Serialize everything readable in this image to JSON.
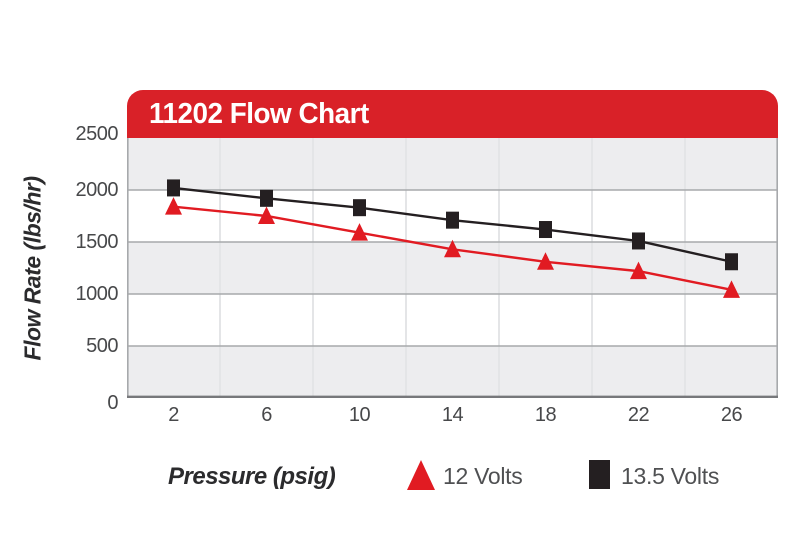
{
  "title": "11202 Flow Chart",
  "colors": {
    "banner_red": "#d92128",
    "series_12v_red": "#e11b22",
    "series_13_5v_black": "#241f21",
    "band_gray": "#ededef",
    "gridline_gray": "#a7a9ac",
    "bottom_axis_gray": "#77787b",
    "vertical_separator": "#e4e5e7",
    "tick_text": "#47484a",
    "legend_text": "#4f5052"
  },
  "axes": {
    "y_title": "Flow Rate (lbs/hr)",
    "x_title": "Pressure (psig)"
  },
  "legend": {
    "items": [
      {
        "label": "12 Volts",
        "marker": "triangle-up",
        "color": "#e11b22"
      },
      {
        "label": "13.5 Volts",
        "marker": "square",
        "color": "#241f21"
      }
    ]
  },
  "chart_data": {
    "type": "line",
    "title": "11202 Flow Chart",
    "xlabel": "Pressure (psig)",
    "ylabel": "Flow Rate (lbs/hr)",
    "categories": [
      2,
      6,
      10,
      14,
      18,
      22,
      26
    ],
    "x_tick_labels": [
      "2",
      "6",
      "10",
      "14",
      "18",
      "22",
      "26"
    ],
    "y_tick_labels": [
      "2500",
      "2000",
      "1500",
      "1000",
      "500",
      "0"
    ],
    "ylim": [
      0,
      2500
    ],
    "y_step": 500,
    "grid": "horizontal gridlines every 500 with alternating gray/white bands; faint vertical separators between categories",
    "legend_position": "below chart, right of x-axis label",
    "series": [
      {
        "name": "12 Volts",
        "marker": "triangle-up",
        "color": "#e11b22",
        "values": [
          1840,
          1750,
          1590,
          1430,
          1310,
          1220,
          1040
        ]
      },
      {
        "name": "13.5 Volts",
        "marker": "square",
        "color": "#241f21",
        "values": [
          2020,
          1920,
          1830,
          1710,
          1620,
          1510,
          1310
        ]
      }
    ]
  }
}
